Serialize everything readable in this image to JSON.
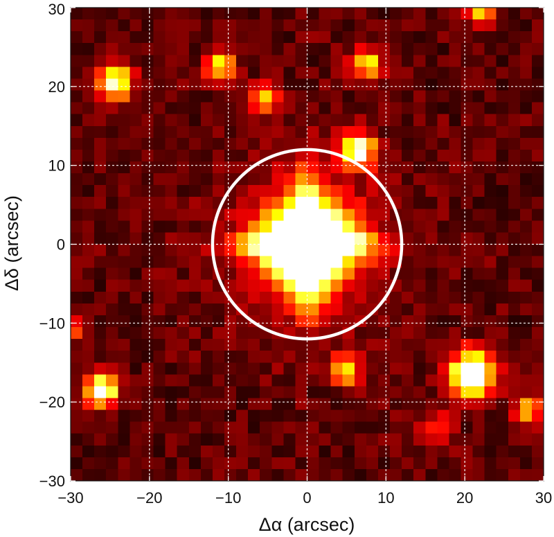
{
  "chart_data": {
    "type": "heatmap",
    "title": "",
    "xlabel": "Δα (arcsec)",
    "ylabel": "Δδ (arcsec)",
    "xlim": [
      -30,
      30
    ],
    "ylim": [
      -30,
      30
    ],
    "x_ticks": [
      -30,
      -20,
      -10,
      0,
      10,
      20,
      30
    ],
    "y_ticks": [
      -30,
      -20,
      -10,
      0,
      10,
      20,
      30
    ],
    "grid": true,
    "grid_style": "dashed white",
    "colormap": "hot",
    "pixel_scale_arcsec": 1.5,
    "sources": [
      {
        "ra": 0,
        "dec": 0,
        "peak": 1.0,
        "sigma": 3.6
      },
      {
        "ra": 21,
        "dec": -16.5,
        "peak": 1.0,
        "sigma": 2.0
      },
      {
        "ra": 6.5,
        "dec": 12,
        "peak": 0.9,
        "sigma": 1.4
      },
      {
        "ra": -24.5,
        "dec": 20.5,
        "peak": 0.85,
        "sigma": 1.5
      },
      {
        "ra": -26,
        "dec": -18.5,
        "peak": 0.85,
        "sigma": 1.4
      },
      {
        "ra": -11,
        "dec": 22.5,
        "peak": 0.62,
        "sigma": 1.3
      },
      {
        "ra": 7.5,
        "dec": 23,
        "peak": 0.6,
        "sigma": 1.3
      },
      {
        "ra": -5.5,
        "dec": 18.5,
        "peak": 0.5,
        "sigma": 1.3
      },
      {
        "ra": 5,
        "dec": -16,
        "peak": 0.55,
        "sigma": 1.3
      },
      {
        "ra": 22,
        "dec": 29.5,
        "peak": 0.55,
        "sigma": 1.2
      },
      {
        "ra": 28,
        "dec": -21,
        "peak": 0.45,
        "sigma": 1.3
      },
      {
        "ra": 16.5,
        "dec": -23.5,
        "peak": 0.3,
        "sigma": 1.4
      },
      {
        "ra": -29.5,
        "dec": -11,
        "peak": 0.3,
        "sigma": 1.0
      }
    ],
    "overlays": [
      {
        "shape": "circle",
        "center": [
          0,
          0
        ],
        "radius_arcsec": 12,
        "color": "#ffffff"
      }
    ],
    "colors": {
      "background": "#ffffff",
      "text": "#111111",
      "overlay": "#ffffff",
      "grid": "#ffffff"
    }
  }
}
